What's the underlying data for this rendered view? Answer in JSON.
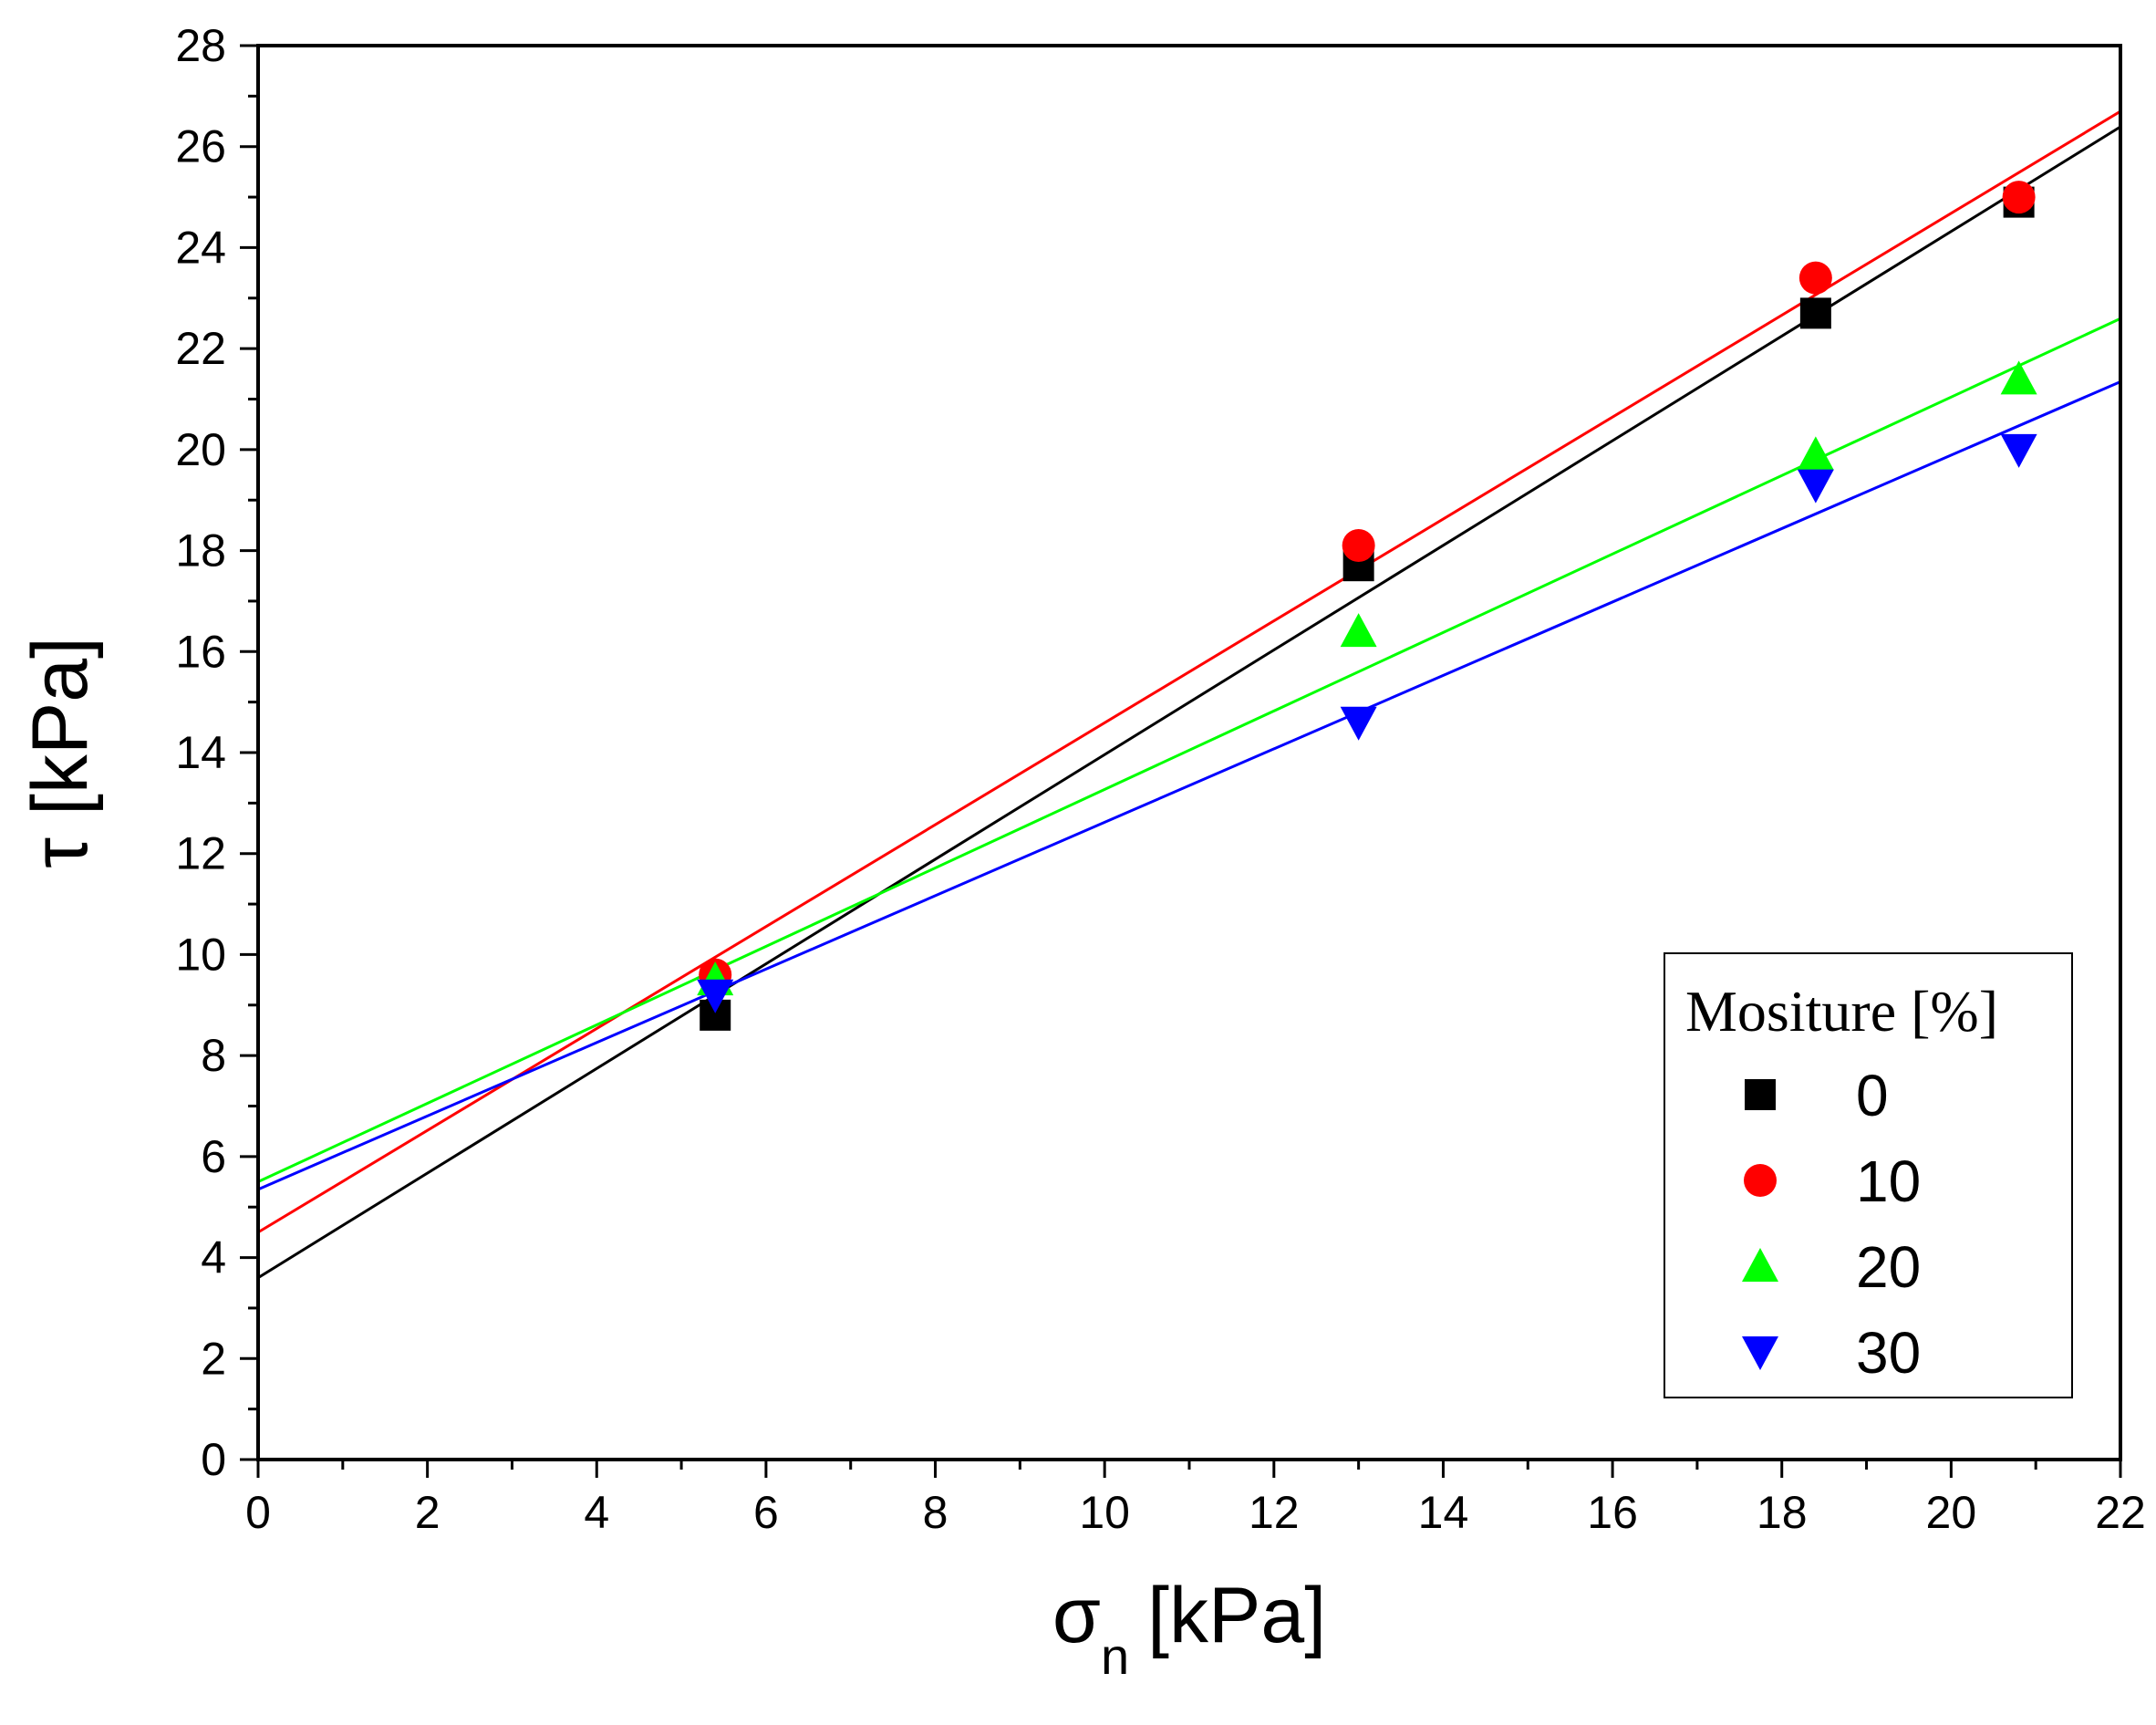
{
  "chart_data": {
    "type": "scatter",
    "title": "",
    "xlabel": {
      "main": "σ",
      "sub": "n",
      "unit": "[kPa]"
    },
    "ylabel": "τ [kPa]",
    "xlim": [
      0,
      22
    ],
    "ylim": [
      0,
      28
    ],
    "x_ticks": [
      0,
      2,
      4,
      6,
      8,
      10,
      12,
      14,
      16,
      18,
      20,
      22
    ],
    "y_ticks": [
      0,
      2,
      4,
      6,
      8,
      10,
      12,
      14,
      16,
      18,
      20,
      22,
      24,
      26,
      28
    ],
    "grid": false,
    "legend": {
      "title": "Mositure [%]",
      "position": "bottom-right"
    },
    "series": [
      {
        "name": "0",
        "marker": "square",
        "color": "#000000",
        "x": [
          5.4,
          13.0,
          18.4,
          20.8
        ],
        "y": [
          8.8,
          17.7,
          22.7,
          24.9
        ],
        "fit": {
          "intercept": 3.6,
          "slope": 1.036
        }
      },
      {
        "name": "10",
        "marker": "circle",
        "color": "#ff0000",
        "x": [
          5.4,
          13.0,
          18.4,
          20.8
        ],
        "y": [
          9.6,
          18.1,
          23.4,
          25.0
        ],
        "fit": {
          "intercept": 4.5,
          "slope": 1.009
        }
      },
      {
        "name": "20",
        "marker": "triangle-up",
        "color": "#00ff00",
        "x": [
          5.4,
          13.0,
          18.4,
          20.8
        ],
        "y": [
          9.5,
          16.4,
          19.9,
          21.4
        ],
        "fit": {
          "intercept": 5.5,
          "slope": 0.777
        }
      },
      {
        "name": "30",
        "marker": "triangle-down",
        "color": "#0000ff",
        "x": [
          5.4,
          13.0,
          18.4,
          20.8
        ],
        "y": [
          9.2,
          14.6,
          19.3,
          20.0
        ],
        "fit": {
          "intercept": 5.35,
          "slope": 0.727
        }
      }
    ]
  }
}
